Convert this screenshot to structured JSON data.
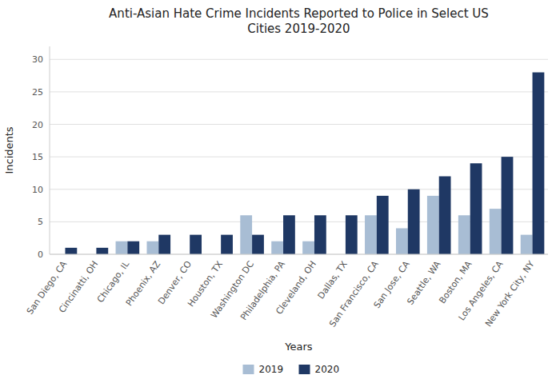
{
  "chart_data": {
    "type": "bar",
    "title": "Anti-Asian Hate Crime Incidents Reported to Police in Select US\nCities 2019-2020",
    "xlabel": "Years",
    "ylabel": "Incidents",
    "categories": [
      "San Diego, CA",
      "Cincinatti, OH",
      "Chicago, IL",
      "Phoenix, AZ",
      "Denver, CO",
      "Houston, TX",
      "Washington DC",
      "Philadelphia, PA",
      "Cleveland, OH",
      "Dallas, TX",
      "San Francisco, CA",
      "San Jose, CA",
      "Seattle, WA",
      "Boston, MA",
      "Los Angeles, CA",
      "New York City, NY"
    ],
    "series": [
      {
        "name": "2019",
        "color": "#a8bdd4",
        "values": [
          0,
          0,
          2,
          2,
          0,
          0,
          6,
          2,
          2,
          0,
          6,
          4,
          9,
          6,
          7,
          3
        ]
      },
      {
        "name": "2020",
        "color": "#1f3864",
        "values": [
          1,
          1,
          2,
          3,
          3,
          3,
          3,
          6,
          6,
          6,
          9,
          10,
          12,
          14,
          15,
          28
        ]
      }
    ],
    "ylim": [
      0,
      32
    ],
    "yticks": [
      0,
      5,
      10,
      15,
      20,
      25,
      30
    ],
    "grid": true,
    "legend": "bottom"
  }
}
